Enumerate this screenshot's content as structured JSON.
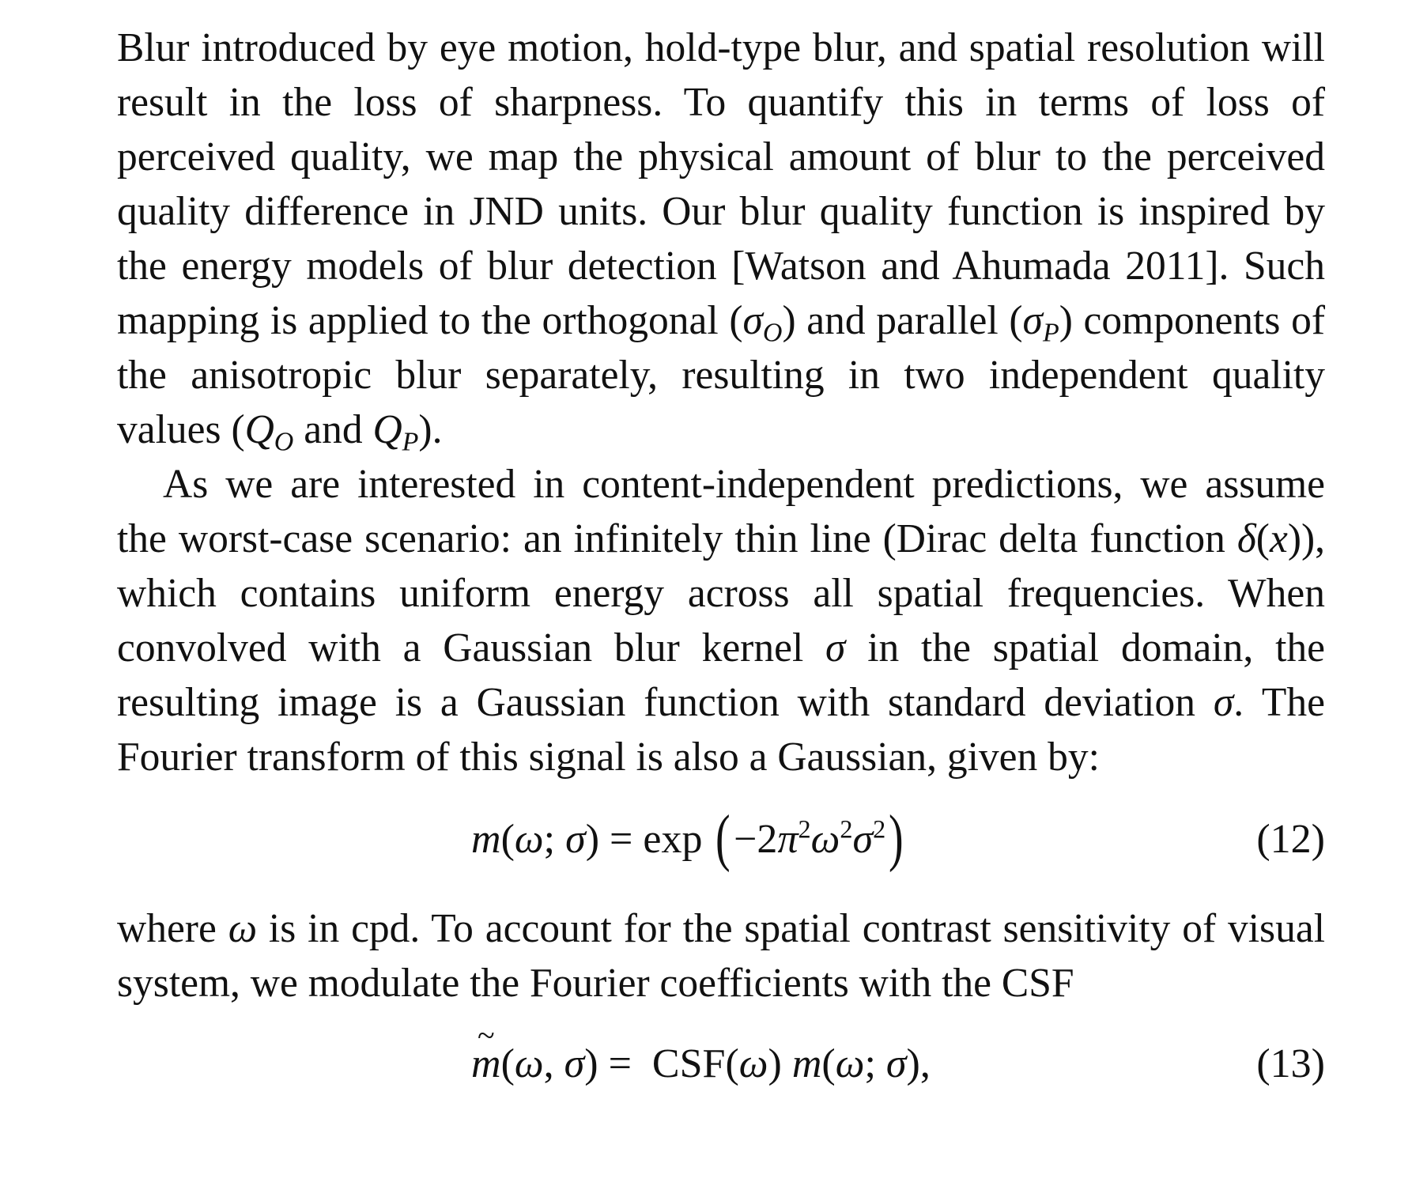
{
  "paragraph1": {
    "t1": "Blur introduced by eye motion, hold-type blur, and spatial resolution will result in the loss of sharpness. To quantify this in terms of loss of perceived quality, we map the physical amount of blur to the perceived quality difference in JND units. Our blur quality function is inspired by the energy models of blur detection [Watson and Ahumada 2011]. Such mapping is applied to the orthogonal (",
    "sigma": "σ",
    "sub_o": "O",
    "t2": ") and parallel (",
    "sub_p": "P",
    "t3": ") components of the anisotropic blur separately, resulting in two independent quality values (",
    "q": "Q",
    "t4": " and ",
    "t5": ")."
  },
  "paragraph2": {
    "t1": "As we are interested in content-independent predictions, we assume the worst-case scenario: an infinitely thin line (Dirac delta function ",
    "delta": "δ",
    "x": "x",
    "t2": "), which contains uniform energy across all spatial frequencies. When convolved with a Gaussian blur kernel ",
    "sigma": "σ",
    "t3": " in the spatial domain, the resulting image is a Gaussian function with standard deviation ",
    "t4": ". The Fourier transform of this signal is also a Gaussian, given by:"
  },
  "equation12": {
    "m": "m",
    "omega": "ω",
    "sigma": "σ",
    "exp": "exp",
    "minus_two": "−2",
    "pi": "π",
    "sq": "2",
    "number": "(12)"
  },
  "paragraph3": {
    "t1": "where ",
    "omega": "ω",
    "t2": " is in cpd. To account for the spatial contrast sensitivity of visual system, we modulate the Fourier coefficients with the CSF"
  },
  "equation13": {
    "m": "m",
    "omega": "ω",
    "sigma": "σ",
    "csf": "CSF",
    "number": "(13)"
  }
}
